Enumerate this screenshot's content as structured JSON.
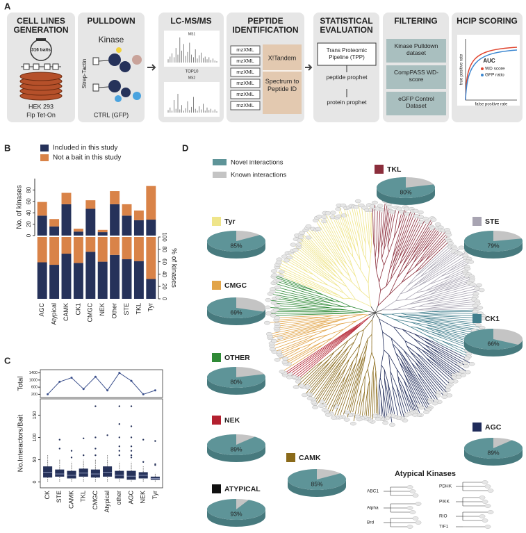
{
  "panel_labels": [
    "A",
    "B",
    "C",
    "D"
  ],
  "panel_a": {
    "steps": [
      {
        "title": "CELL LINES GENERATION",
        "texts": [
          "316 baits",
          "HEK 293",
          "Flp Tet-On"
        ]
      },
      {
        "title": "PULLDOWN",
        "texts": [
          "Kinase",
          "Strep-Tactin",
          "CTRL (GFP)"
        ]
      },
      {
        "title": "LC-MS/MS",
        "texts": [
          "MS1",
          "TOP10",
          "MS2"
        ]
      },
      {
        "title": "PEPTIDE IDENTIFICATION",
        "texts": [
          "mzXML",
          "mzXML",
          "mzXML",
          "mzXML",
          "mzXML",
          "mzXML",
          "X!Tandem",
          "Spectrum to Peptide ID"
        ]
      },
      {
        "title": "STATISTICAL EVALUATION",
        "texts": [
          "Trans Proteomic Pipeline (TPP)",
          "peptide prophet",
          "protein prophet"
        ]
      },
      {
        "title": "FILTERING",
        "texts": [
          "Kinase Pulldown dataset",
          "CompPASS WD-score",
          "eGFP Control Dataset"
        ]
      },
      {
        "title": "HCIP SCORING",
        "texts": [
          "AUC",
          "WD score",
          "GFP ratio",
          "true positive rate",
          "false positive rate"
        ]
      }
    ]
  },
  "chart_data": [
    {
      "type": "bar",
      "stacked": true,
      "categories": [
        "AGC",
        "Atypical",
        "CAMK",
        "CK1",
        "CMGC",
        "NEK",
        "Other",
        "STE",
        "TKL",
        "Tyr"
      ],
      "ylabel": "No. of kinases",
      "ylim": [
        0,
        100
      ],
      "yticks": [
        0,
        20,
        40,
        60,
        80
      ],
      "series": [
        {
          "name": "Included in this study",
          "color": "#26325a",
          "values": [
            35,
            16,
            55,
            7,
            47,
            6,
            55,
            35,
            27,
            28
          ]
        },
        {
          "name": "Not a bait in this study",
          "color": "#d98348",
          "values": [
            24,
            13,
            20,
            5,
            15,
            4,
            23,
            20,
            17,
            59
          ]
        }
      ]
    },
    {
      "type": "bar",
      "stacked": true,
      "ylabel": "% of kinases",
      "ylim": [
        0,
        100
      ],
      "yticks": [
        0,
        20,
        40,
        60,
        80,
        100
      ],
      "series": [
        {
          "color": "#26325a",
          "values": [
            59,
            55,
            73,
            58,
            76,
            60,
            71,
            64,
            61,
            32
          ]
        },
        {
          "color": "#d98348",
          "values": [
            41,
            45,
            27,
            42,
            24,
            40,
            29,
            36,
            39,
            68
          ]
        }
      ]
    },
    {
      "type": "line",
      "ylabel": "Total",
      "ylim": [
        100,
        1500
      ],
      "yticks": [
        200,
        600,
        1000,
        1400
      ],
      "color": "#3a4f8c",
      "values": [
        200,
        900,
        1130,
        500,
        1180,
        420,
        1400,
        950,
        200,
        420
      ]
    },
    {
      "type": "box",
      "categories": [
        "CK",
        "STE",
        "CAMK",
        "TKL",
        "CMGC",
        "Atypical",
        "other",
        "AGC",
        "NEK",
        "Tyr"
      ],
      "ylabel": "No.Interactors/Bait",
      "ylim": [
        -10,
        185
      ],
      "yticks": [
        0,
        50,
        100,
        150
      ],
      "color": "#26325a",
      "whisker_low": [
        1,
        1,
        1,
        1,
        1,
        1,
        1,
        1,
        1,
        1
      ],
      "q1": [
        10,
        12,
        8,
        12,
        10,
        12,
        8,
        5,
        8,
        5
      ],
      "median": [
        22,
        18,
        15,
        20,
        18,
        22,
        15,
        13,
        15,
        8
      ],
      "q3": [
        35,
        28,
        25,
        30,
        28,
        35,
        25,
        25,
        22,
        12
      ],
      "whisker_high": [
        60,
        50,
        45,
        50,
        50,
        60,
        45,
        45,
        35,
        20
      ],
      "outliers": [
        [],
        [
          95,
          75
        ],
        [
          70,
          55
        ],
        [
          98,
          60
        ],
        [
          170,
          100,
          75,
          60
        ],
        [
          105
        ],
        [
          170,
          130,
          100,
          80,
          70,
          60
        ],
        [
          170,
          125,
          100,
          80,
          70,
          60,
          55
        ],
        [
          95,
          45
        ],
        [
          92,
          40,
          38
        ]
      ]
    },
    {
      "type": "pie",
      "legend": [
        {
          "name": "Novel interactions",
          "color": "#5e9498"
        },
        {
          "name": "Known interactions",
          "color": "#c4c4c4"
        }
      ],
      "categories": [
        "TKL",
        "Tyr",
        "STE",
        "CMGC",
        "CK1",
        "OTHER",
        "AGC",
        "NEK",
        "CAMK",
        "ATYPICAL"
      ],
      "colors": [
        "#8b2e3c",
        "#efe58a",
        "#a8a4b2",
        "#e2a448",
        "#3f7d8c",
        "#2f8a36",
        "#1f2b5a",
        "#b3202f",
        "#8a6a1a",
        "#111111"
      ],
      "values": [
        80,
        85,
        79,
        69,
        66,
        80,
        89,
        89,
        85,
        93
      ],
      "value_labels": [
        "80%",
        "85%",
        "79%",
        "69%",
        "66%",
        "80%",
        "89%",
        "89%",
        "85%",
        "93%"
      ]
    }
  ],
  "atypical_kinases": {
    "title": "Atypical Kinases",
    "families": [
      "ABC1",
      "Alpha",
      "Brd",
      "PDHK",
      "PIKK",
      "RIO",
      "TIF1"
    ]
  }
}
